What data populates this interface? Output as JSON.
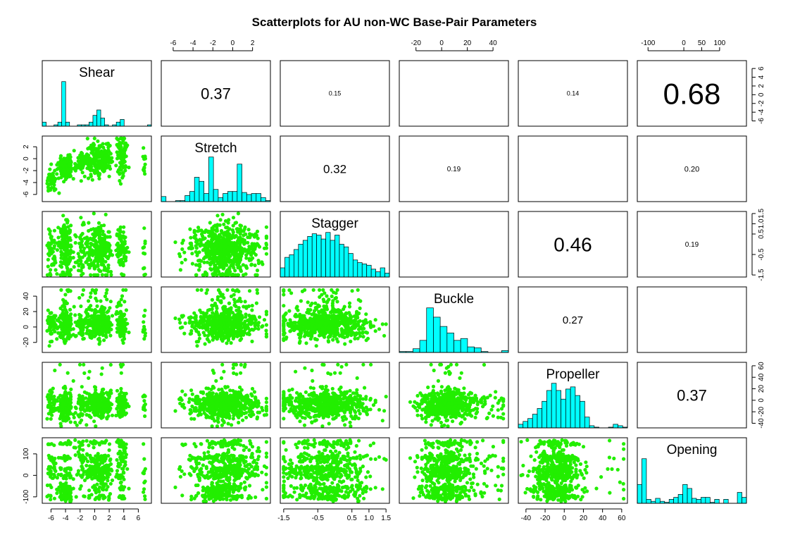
{
  "chart_data": {
    "type": "scatter-matrix",
    "title": "Scatterplots for AU non-WC Base-Pair Parameters",
    "variables": [
      "Shear",
      "Stretch",
      "Stagger",
      "Buckle",
      "Propeller",
      "Opening"
    ],
    "colors": {
      "points": "#22ee00",
      "bars": "#00ffff",
      "frame": "#000000"
    },
    "ranges": [
      [
        -7.2,
        7.8
      ],
      [
        -7.2,
        3.8
      ],
      [
        -1.6,
        1.6
      ],
      [
        -33,
        52
      ],
      [
        -48,
        66
      ],
      [
        -130,
        175
      ]
    ],
    "ticks": {
      "top": [
        {
          "var": 1,
          "labels": [
            "-6",
            "-4",
            "-2",
            "0",
            "2"
          ]
        },
        {
          "var": 3,
          "labels": [
            "-20",
            "0",
            "20",
            "40"
          ]
        },
        {
          "var": 5,
          "labels": [
            "-100",
            "0",
            "50",
            "100"
          ]
        }
      ],
      "bottom": [
        {
          "var": 0,
          "labels": [
            "-6",
            "-4",
            "-2",
            "0",
            "2",
            "4",
            "6"
          ]
        },
        {
          "var": 2,
          "labels": [
            "-1.5",
            "-0.5",
            "0.5",
            "1.0",
            "1.5"
          ]
        },
        {
          "var": 4,
          "labels": [
            "-40",
            "-20",
            "0",
            "20",
            "40",
            "60"
          ]
        }
      ],
      "left": [
        {
          "var": 1,
          "labels": [
            "2",
            "0",
            "-2",
            "-4",
            "-6"
          ]
        },
        {
          "var": 3,
          "labels": [
            "40",
            "20",
            "0",
            "-20"
          ]
        },
        {
          "var": 5,
          "labels": [
            "100",
            "0",
            "-100"
          ]
        }
      ],
      "right": [
        {
          "var": 0,
          "labels": [
            "6",
            "4",
            "2",
            "0",
            "-2",
            "-4",
            "-6"
          ]
        },
        {
          "var": 2,
          "labels": [
            "1.5",
            "1.0",
            "0.5",
            "-0.5",
            "-1.5"
          ]
        },
        {
          "var": 4,
          "labels": [
            "60",
            "40",
            "20",
            "0",
            "-20",
            "-40"
          ]
        }
      ]
    },
    "correlations": [
      {
        "row": "Shear",
        "col": "Stretch",
        "label": "0.37",
        "size": 22
      },
      {
        "row": "Shear",
        "col": "Stagger",
        "label": "0.15",
        "size": 9
      },
      {
        "row": "Shear",
        "col": "Buckle",
        "label": "",
        "size": 2
      },
      {
        "row": "Shear",
        "col": "Propeller",
        "label": "0.14",
        "size": 9
      },
      {
        "row": "Shear",
        "col": "Opening",
        "label": "0.68",
        "size": 42
      },
      {
        "row": "Stretch",
        "col": "Stagger",
        "label": "0.32",
        "size": 17
      },
      {
        "row": "Stretch",
        "col": "Buckle",
        "label": "0.19",
        "size": 10
      },
      {
        "row": "Stretch",
        "col": "Propeller",
        "label": "",
        "size": 4
      },
      {
        "row": "Stretch",
        "col": "Opening",
        "label": "0.20",
        "size": 11
      },
      {
        "row": "Stagger",
        "col": "Buckle",
        "label": "",
        "size": 4
      },
      {
        "row": "Stagger",
        "col": "Propeller",
        "label": "0.46",
        "size": 28
      },
      {
        "row": "Stagger",
        "col": "Opening",
        "label": "0.19",
        "size": 10
      },
      {
        "row": "Buckle",
        "col": "Propeller",
        "label": "0.27",
        "size": 15
      },
      {
        "row": "Buckle",
        "col": "Opening",
        "label": "",
        "size": 0
      },
      {
        "row": "Propeller",
        "col": "Opening",
        "label": "0.37",
        "size": 22
      }
    ],
    "histograms": [
      {
        "var": "Shear",
        "counts": [
          3,
          0,
          0,
          1,
          3,
          33,
          3,
          0,
          0,
          1,
          1,
          1,
          3,
          8,
          12,
          6,
          1,
          0,
          1,
          3,
          5,
          0,
          0,
          0,
          0,
          0,
          0,
          1
        ]
      },
      {
        "var": "Stretch",
        "counts": [
          5,
          0,
          0,
          1,
          1,
          6,
          10,
          24,
          20,
          8,
          44,
          12,
          4,
          8,
          10,
          10,
          37,
          9,
          7,
          8,
          8,
          4,
          1
        ]
      },
      {
        "var": "Stagger",
        "counts": [
          7,
          15,
          17,
          21,
          25,
          28,
          31,
          33,
          32,
          29,
          34,
          28,
          32,
          25,
          23,
          18,
          13,
          11,
          10,
          9,
          6,
          4,
          7,
          3
        ]
      },
      {
        "var": "Buckle",
        "counts": [
          1,
          1,
          4,
          13,
          48,
          38,
          28,
          21,
          13,
          15,
          6,
          5,
          1,
          0,
          0,
          2
        ]
      },
      {
        "var": "Propeller",
        "counts": [
          5,
          9,
          13,
          19,
          27,
          37,
          52,
          62,
          52,
          40,
          54,
          57,
          45,
          37,
          15,
          3,
          1,
          0,
          0,
          1,
          5,
          3,
          1
        ]
      },
      {
        "var": "Opening",
        "counts": [
          19,
          45,
          4,
          2,
          5,
          2,
          1,
          4,
          6,
          9,
          19,
          15,
          5,
          4,
          6,
          6,
          1,
          4,
          0,
          4,
          0,
          0,
          11,
          6
        ]
      }
    ]
  }
}
